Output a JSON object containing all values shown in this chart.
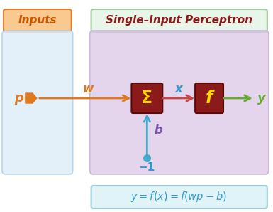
{
  "title": "Single–Input Perceptron",
  "inputs_label": "Inputs",
  "p_label": "p",
  "w_label": "w",
  "sigma_label": "Σ",
  "x_label": "x",
  "f_label": "f",
  "y_label": "y",
  "b_label": "b",
  "neg1_label": "−1",
  "bg_color": "#ffffff",
  "inputs_box_facecolor": "#f9c990",
  "inputs_box_edgecolor": "#e08030",
  "inputs_text_color": "#cc5500",
  "inputs_panel_facecolor": "#deeef8",
  "inputs_panel_edgecolor": "#b0d0e8",
  "percept_panel_facecolor": "#dcc8e8",
  "percept_panel_edgecolor": "#c0a8d0",
  "title_box_facecolor": "#e8f5e9",
  "title_box_edgecolor": "#a5c8a0",
  "title_text_color": "#8b1a1a",
  "sigma_box_facecolor": "#8b1a1a",
  "sigma_box_edgecolor": "#5a0a0a",
  "f_box_facecolor": "#8b1a1a",
  "f_box_edgecolor": "#5a0a0a",
  "sigma_text_color": "#ffd700",
  "f_text_color": "#ffd700",
  "arrow_w_color": "#e07820",
  "arrow_x_color": "#cc4444",
  "arrow_y_color": "#66aa33",
  "arrow_b_color": "#44aacc",
  "p_color": "#e07820",
  "x_label_color": "#3399cc",
  "y_label_color": "#66aa33",
  "b_label_color": "#7755aa",
  "neg1_color": "#3399cc",
  "formula_color": "#3399cc",
  "formula_box_facecolor": "#e0f4f8",
  "formula_box_edgecolor": "#a0ccd8"
}
